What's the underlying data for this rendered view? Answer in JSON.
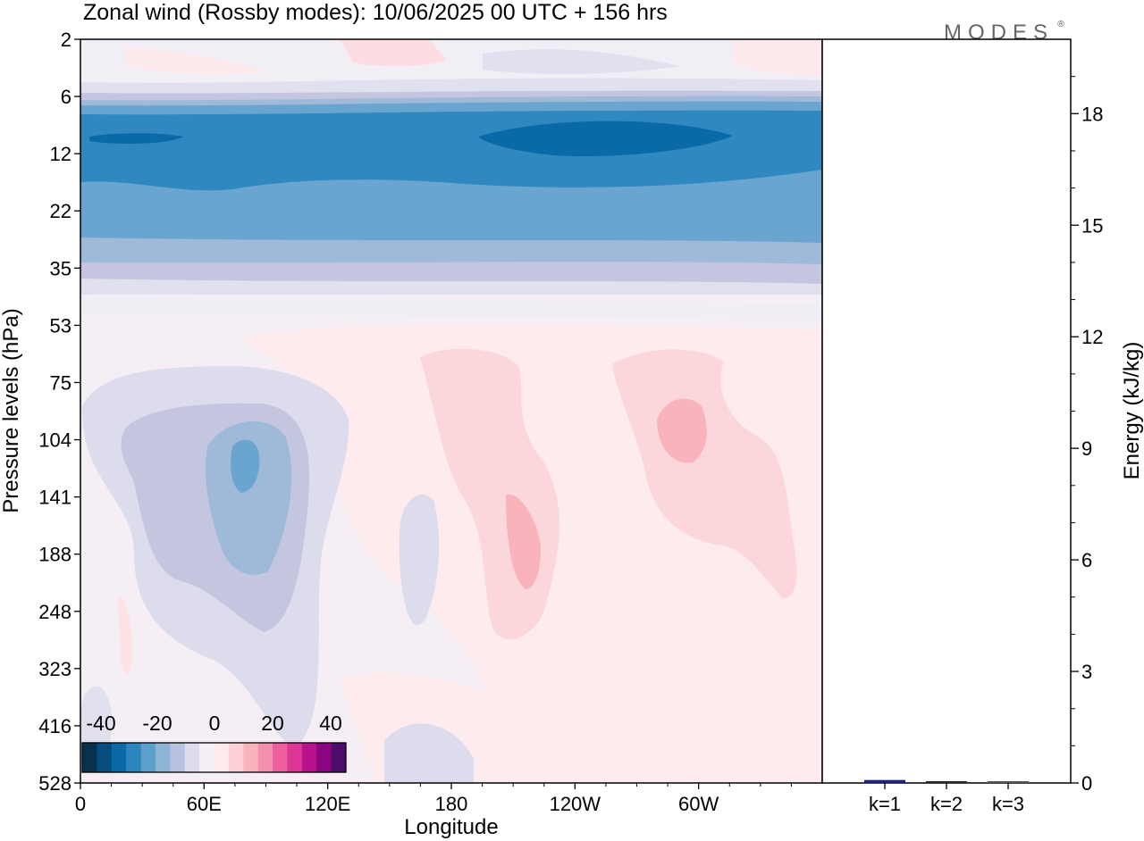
{
  "chart_data": {
    "type": "contour",
    "title": "Zonal wind (Rossby modes):  10/06/2025  00 UTC  + 156 hrs",
    "logo": "MODES",
    "xlabel": "Longitude",
    "ylabel": "Pressure levels (hPa)",
    "x_ticks": [
      "0",
      "60E",
      "120E",
      "180",
      "120W",
      "60W"
    ],
    "x_tick_values": [
      0,
      60,
      120,
      180,
      240,
      300
    ],
    "xlim": [
      0,
      360
    ],
    "y_ticks": [
      "2",
      "6",
      "12",
      "22",
      "35",
      "53",
      "75",
      "104",
      "141",
      "188",
      "248",
      "323",
      "416",
      "528"
    ],
    "colorbar": {
      "labels": [
        "-40",
        "-20",
        "0",
        "20",
        "40"
      ],
      "colors": [
        "#08304f",
        "#084d80",
        "#0a6aa8",
        "#2c86bb",
        "#5b9fcb",
        "#8db3d5",
        "#b8c2de",
        "#dcdcec",
        "#f3eff5",
        "#ffe9ec",
        "#fcd0d4",
        "#f9b3bc",
        "#f58fae",
        "#ee5fa0",
        "#de3697",
        "#b8128b",
        "#8b0580",
        "#4d0d6b"
      ]
    },
    "fields": [
      {
        "name": "upper-easterly-jet",
        "approx_min_ms": -30,
        "levels_hPa": [
          6,
          22
        ]
      },
      {
        "name": "western-trough",
        "approx_min_ms": -20,
        "center_lon": 75,
        "center_hPa": 125
      },
      {
        "name": "pacific-positive-1",
        "approx_max_ms": 12,
        "center_lon": 200,
        "center_hPa": 180
      },
      {
        "name": "pacific-positive-2",
        "approx_max_ms": 12,
        "center_lon": 293,
        "center_hPa": 110
      }
    ],
    "energy_panel": {
      "ylabel": "Energy (kJ/kg)",
      "y_ticks": [
        "0",
        "3",
        "6",
        "9",
        "12",
        "15",
        "18"
      ],
      "ylim": [
        0,
        20
      ],
      "categories": [
        "k=1",
        "k=2",
        "k=3"
      ],
      "values": [
        0.08,
        0.04,
        0.02
      ],
      "bar_colors": [
        "#1a2080",
        "#2a2a2a",
        "#555555"
      ]
    }
  }
}
